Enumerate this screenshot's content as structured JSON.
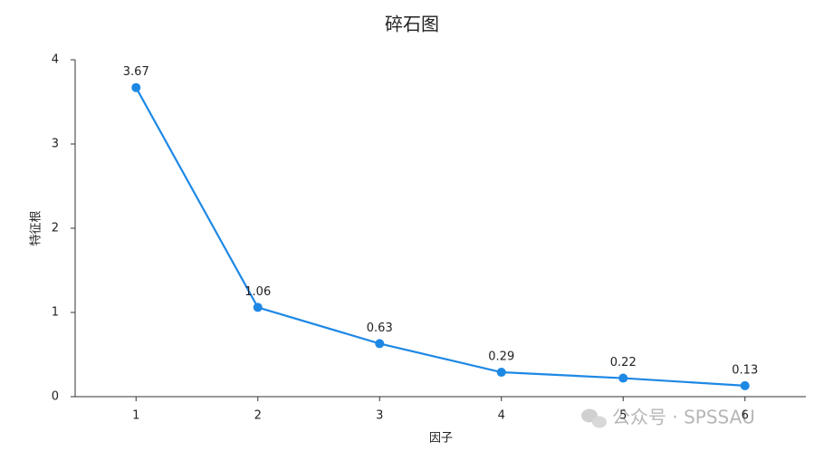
{
  "chart_data": {
    "type": "line",
    "title": "碎石图",
    "x_label": "因子",
    "y_label": "特征根",
    "categories": [
      "1",
      "2",
      "3",
      "4",
      "5",
      "6"
    ],
    "series": [
      {
        "name": "特征根",
        "color": "#1e88e5",
        "values": [
          3.67,
          1.06,
          0.63,
          0.29,
          0.22,
          0.13
        ]
      }
    ],
    "ylim": [
      0,
      4
    ],
    "yticks": [
      0,
      1,
      2,
      3,
      4
    ],
    "grid": false,
    "data_labels": true,
    "watermark": "公众号 · SPSSAU"
  }
}
